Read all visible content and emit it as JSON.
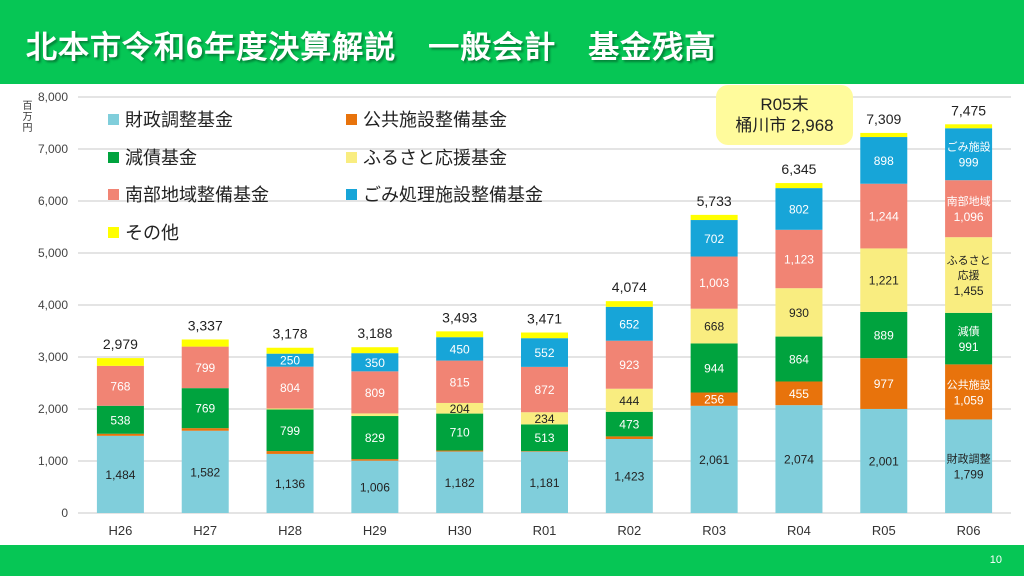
{
  "header": {
    "title": "北本市令和6年度決算解説　一般会計　基金残高"
  },
  "footer": {
    "page_number": "10"
  },
  "chart_data": {
    "type": "bar",
    "stacked": true,
    "title": "北本市令和6年度決算解説　一般会計　基金残高",
    "xlabel": "",
    "ylabel": "百万円",
    "ylim": [
      0,
      8000
    ],
    "y_ticks": [
      0,
      1000,
      2000,
      3000,
      4000,
      5000,
      6000,
      7000,
      8000
    ],
    "y_tick_labels": [
      "0",
      "1,000",
      "2,000",
      "3,000",
      "4,000",
      "5,000",
      "6,000",
      "7,000",
      "8,000"
    ],
    "grid": true,
    "legend_position": "top-left",
    "categories": [
      "H26",
      "H27",
      "H28",
      "H29",
      "H30",
      "R01",
      "R02",
      "R03",
      "R04",
      "R05",
      "R06"
    ],
    "name_label_categories": [
      "R06"
    ],
    "series": [
      {
        "key": "fiscal-adjustment",
        "name": "財政調整基金",
        "short_name_lines": [
          "財政調整"
        ],
        "color": "#80cedb",
        "label_color": "#222222",
        "values": [
          1484,
          1582,
          1136,
          1006,
          1182,
          1181,
          1423,
          2061,
          2074,
          2001,
          1799
        ],
        "labels": [
          "1,484",
          "1,582",
          "1,136",
          "1,006",
          "1,182",
          "1,181",
          "1,423",
          "2,061",
          "2,074",
          "2,001",
          "1,799"
        ]
      },
      {
        "key": "public-facilities",
        "name": "公共施設整備基金",
        "short_name_lines": [
          "公共施設"
        ],
        "color": "#e8730c",
        "label_color": "#ffffff",
        "values": [
          40,
          50,
          55,
          30,
          20,
          10,
          50,
          256,
          455,
          977,
          1059
        ],
        "labels": [
          null,
          null,
          null,
          null,
          null,
          null,
          null,
          "256",
          "455",
          "977",
          "1,059"
        ]
      },
      {
        "key": "debt-reduction",
        "name": "減債基金",
        "short_name_lines": [
          "減債"
        ],
        "color": "#00a33e",
        "label_color": "#ffffff",
        "values": [
          538,
          769,
          799,
          829,
          710,
          513,
          473,
          944,
          864,
          889,
          991
        ],
        "labels": [
          "538",
          "769",
          "799",
          "829",
          "710",
          "513",
          "473",
          "944",
          "864",
          "889",
          "991"
        ]
      },
      {
        "key": "furusato",
        "name": "ふるさと応援基金",
        "short_name_lines": [
          "ふるさと",
          "応援"
        ],
        "color": "#f9ed80",
        "label_color": "#222222",
        "values": [
          0,
          0,
          20,
          50,
          204,
          234,
          444,
          668,
          930,
          1221,
          1455
        ],
        "labels": [
          null,
          null,
          null,
          null,
          "204",
          "234",
          "444",
          "668",
          "930",
          "1,221",
          "1,455"
        ]
      },
      {
        "key": "southern-area",
        "name": "南部地域整備基金",
        "short_name_lines": [
          "南部地域"
        ],
        "color": "#f18474",
        "label_color": "#ffffff",
        "values": [
          768,
          799,
          804,
          809,
          815,
          872,
          923,
          1003,
          1123,
          1244,
          1096
        ],
        "labels": [
          "768",
          "799",
          "804",
          "809",
          "815",
          "872",
          "923",
          "1,003",
          "1,123",
          "1,244",
          "1,096"
        ]
      },
      {
        "key": "waste-facility",
        "name": "ごみ処理施設整備基金",
        "short_name_lines": [
          "ごみ施設"
        ],
        "color": "#17a5d8",
        "label_color": "#ffffff",
        "values": [
          0,
          0,
          250,
          350,
          450,
          552,
          652,
          702,
          802,
          898,
          999
        ],
        "labels": [
          null,
          null,
          "250",
          "350",
          "450",
          "552",
          "652",
          "702",
          "802",
          "898",
          "999"
        ]
      },
      {
        "key": "other",
        "name": "その他",
        "short_name_lines": [
          "その他"
        ],
        "color": "#ffff00",
        "label_color": "#222222",
        "values": [
          149,
          137,
          114,
          114,
          112,
          109,
          109,
          99,
          97,
          79,
          76
        ],
        "labels": [
          null,
          null,
          null,
          null,
          null,
          null,
          null,
          null,
          null,
          null,
          null
        ]
      }
    ],
    "totals": [
      2979,
      3337,
      3178,
      3188,
      3493,
      3471,
      4074,
      5733,
      6345,
      7309,
      7475
    ],
    "total_labels": [
      "2,979",
      "3,337",
      "3,178",
      "3,188",
      "3,493",
      "3,471",
      "4,074",
      "5,733",
      "6,345",
      "7,309",
      "7,475"
    ],
    "annotation": {
      "line1": "R05末",
      "line2": "桶川市 2,968"
    }
  }
}
